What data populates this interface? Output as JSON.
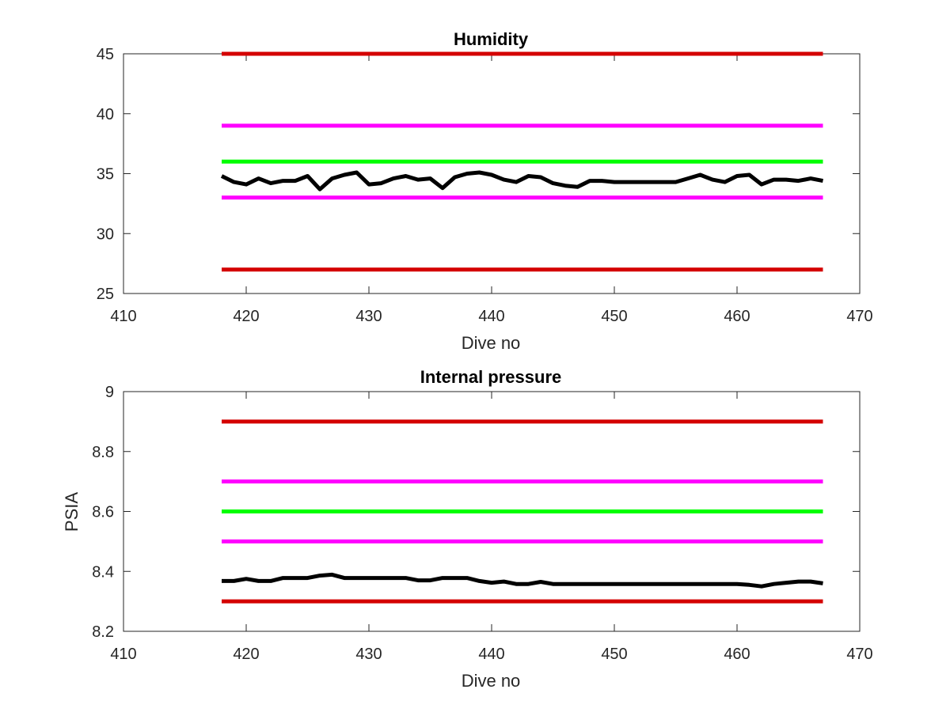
{
  "chart_data": [
    {
      "type": "line",
      "title": "Humidity",
      "xlabel": "Dive no",
      "ylabel": "",
      "xlim": [
        410,
        470
      ],
      "ylim": [
        25,
        45
      ],
      "xticks": [
        "410",
        "420",
        "430",
        "440",
        "450",
        "460",
        "470"
      ],
      "yticks": [
        "25",
        "30",
        "35",
        "40",
        "45"
      ],
      "grid": false,
      "colors": {
        "limit_outer": "#d40000",
        "limit_inner": "#ff00ff",
        "nominal": "#00ff00",
        "measured": "#000000"
      },
      "series": [
        {
          "role": "limit-outer-upper",
          "color": "#d40000",
          "x": [
            418,
            467
          ],
          "y": [
            45,
            45
          ]
        },
        {
          "role": "limit-inner-upper",
          "color": "#ff00ff",
          "x": [
            418,
            467
          ],
          "y": [
            39,
            39
          ]
        },
        {
          "role": "nominal",
          "color": "#00ff00",
          "x": [
            418,
            467
          ],
          "y": [
            36,
            36
          ]
        },
        {
          "role": "limit-inner-lower",
          "color": "#ff00ff",
          "x": [
            418,
            467
          ],
          "y": [
            33,
            33
          ]
        },
        {
          "role": "limit-outer-lower",
          "color": "#d40000",
          "x": [
            418,
            467
          ],
          "y": [
            27,
            27
          ]
        },
        {
          "role": "measured",
          "color": "#000000",
          "x": [
            418,
            419,
            420,
            421,
            422,
            423,
            424,
            425,
            426,
            427,
            428,
            429,
            430,
            431,
            432,
            433,
            434,
            435,
            436,
            437,
            438,
            439,
            440,
            441,
            442,
            443,
            444,
            445,
            446,
            447,
            448,
            449,
            450,
            451,
            452,
            453,
            454,
            455,
            456,
            457,
            458,
            459,
            460,
            461,
            462,
            463,
            464,
            465,
            466,
            467
          ],
          "y": [
            34.8,
            34.3,
            34.1,
            34.6,
            34.2,
            34.4,
            34.4,
            34.8,
            33.7,
            34.6,
            34.9,
            35.1,
            34.1,
            34.2,
            34.6,
            34.8,
            34.5,
            34.6,
            33.8,
            34.7,
            35.0,
            35.1,
            34.9,
            34.5,
            34.3,
            34.8,
            34.7,
            34.2,
            34.0,
            33.9,
            34.4,
            34.4,
            34.3,
            34.3,
            34.3,
            34.3,
            34.3,
            34.3,
            34.6,
            34.9,
            34.5,
            34.3,
            34.8,
            34.9,
            34.1,
            34.5,
            34.5,
            34.4,
            34.6,
            34.4
          ]
        }
      ]
    },
    {
      "type": "line",
      "title": "Internal pressure",
      "xlabel": "Dive no",
      "ylabel": "PSIA",
      "xlim": [
        410,
        470
      ],
      "ylim": [
        8.2,
        9
      ],
      "xticks": [
        "410",
        "420",
        "430",
        "440",
        "450",
        "460",
        "470"
      ],
      "yticks": [
        "8.2",
        "8.4",
        "8.6",
        "8.8",
        "9"
      ],
      "grid": false,
      "colors": {
        "limit_outer": "#d40000",
        "limit_inner": "#ff00ff",
        "nominal": "#00ff00",
        "measured": "#000000"
      },
      "series": [
        {
          "role": "limit-outer-upper",
          "color": "#d40000",
          "x": [
            418,
            467
          ],
          "y": [
            8.9,
            8.9
          ]
        },
        {
          "role": "limit-inner-upper",
          "color": "#ff00ff",
          "x": [
            418,
            467
          ],
          "y": [
            8.7,
            8.7
          ]
        },
        {
          "role": "nominal",
          "color": "#00ff00",
          "x": [
            418,
            467
          ],
          "y": [
            8.6,
            8.6
          ]
        },
        {
          "role": "limit-inner-lower",
          "color": "#ff00ff",
          "x": [
            418,
            467
          ],
          "y": [
            8.5,
            8.5
          ]
        },
        {
          "role": "limit-outer-lower",
          "color": "#d40000",
          "x": [
            418,
            467
          ],
          "y": [
            8.3,
            8.3
          ]
        },
        {
          "role": "measured",
          "color": "#000000",
          "x": [
            418,
            419,
            420,
            421,
            422,
            423,
            424,
            425,
            426,
            427,
            428,
            429,
            430,
            431,
            432,
            433,
            434,
            435,
            436,
            437,
            438,
            439,
            440,
            441,
            442,
            443,
            444,
            445,
            446,
            447,
            448,
            449,
            450,
            451,
            452,
            453,
            454,
            455,
            456,
            457,
            458,
            459,
            460,
            461,
            462,
            463,
            464,
            465,
            466,
            467
          ],
          "y": [
            8.368,
            8.368,
            8.375,
            8.368,
            8.368,
            8.378,
            8.378,
            8.378,
            8.386,
            8.389,
            8.378,
            8.378,
            8.378,
            8.378,
            8.378,
            8.378,
            8.37,
            8.37,
            8.378,
            8.378,
            8.378,
            8.368,
            8.362,
            8.366,
            8.358,
            8.358,
            8.365,
            8.358,
            8.358,
            8.358,
            8.358,
            8.358,
            8.358,
            8.358,
            8.358,
            8.358,
            8.358,
            8.358,
            8.358,
            8.358,
            8.358,
            8.358,
            8.358,
            8.355,
            8.35,
            8.358,
            8.362,
            8.366,
            8.366,
            8.36
          ]
        }
      ]
    }
  ]
}
